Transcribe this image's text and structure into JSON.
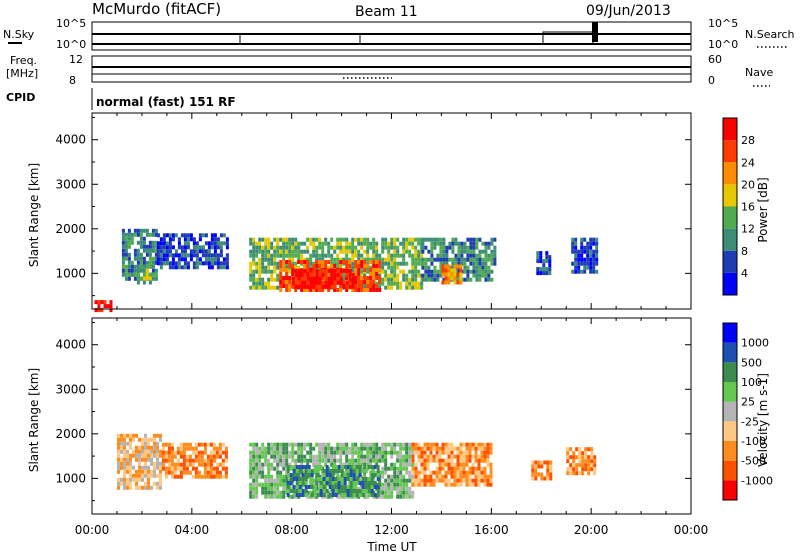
{
  "header": {
    "station": "McMurdo (fitACF)",
    "beam": "Beam 11",
    "date": "09/Jun/2013",
    "cpid_label": "CPID",
    "cpid_value": "normal (fast) 151 RF"
  },
  "noise_panel": {
    "left_label": "N.Sky",
    "right_label": "N.Search",
    "left_ticks": [
      "10^5",
      "10^0"
    ],
    "right_ticks": [
      "10^5",
      "10^0"
    ]
  },
  "freq_panel": {
    "left_label_1": "Freq.",
    "left_label_2": "[MHz]",
    "right_label": "Nave",
    "left_ticks": [
      "12",
      "8"
    ],
    "right_ticks": [
      "60",
      "0"
    ]
  },
  "chart_data": [
    {
      "type": "heatmap",
      "name": "power",
      "ylabel": "Slant Range [km]",
      "yticks": [
        1000,
        2000,
        3000,
        4000
      ],
      "ylim": [
        200,
        4600
      ],
      "xlim": [
        0,
        24
      ],
      "xunit": "hours UT",
      "colorbar_label": "Power [dB]",
      "colorbar_ticks": [
        "28",
        "24",
        "20",
        "16",
        "12",
        "8",
        "4"
      ],
      "colors": [
        "#0000ff",
        "#1e3cb4",
        "#3c8c78",
        "#50aa50",
        "#e6c800",
        "#ff8c00",
        "#ff3c00",
        "#ff0000"
      ],
      "echo_regions": [
        {
          "t0": 0.1,
          "t1": 0.8,
          "r0": 200,
          "r1": 400,
          "level": 7
        },
        {
          "t0": 1.2,
          "t1": 2.6,
          "r0": 900,
          "r1": 2000,
          "level": 2
        },
        {
          "t0": 1.8,
          "t1": 2.4,
          "r0": 800,
          "r1": 1200,
          "level": 3
        },
        {
          "t0": 2.6,
          "t1": 5.4,
          "r0": 1100,
          "r1": 1900,
          "level": 1
        },
        {
          "t0": 6.3,
          "t1": 13.2,
          "r0": 700,
          "r1": 1800,
          "level": 3
        },
        {
          "t0": 7.5,
          "t1": 11.5,
          "r0": 650,
          "r1": 1300,
          "level": 6
        },
        {
          "t0": 8.0,
          "t1": 10.5,
          "r0": 700,
          "r1": 1100,
          "level": 7
        },
        {
          "t0": 13.2,
          "t1": 16.2,
          "r0": 900,
          "r1": 1800,
          "level": 2
        },
        {
          "t0": 14.0,
          "t1": 14.8,
          "r0": 800,
          "r1": 1200,
          "level": 5
        },
        {
          "t0": 17.8,
          "t1": 18.4,
          "r0": 1000,
          "r1": 1500,
          "level": 1
        },
        {
          "t0": 19.2,
          "t1": 20.2,
          "r0": 1000,
          "r1": 1800,
          "level": 1
        }
      ]
    },
    {
      "type": "heatmap",
      "name": "velocity",
      "ylabel": "Slant Range [km]",
      "yticks": [
        1000,
        2000,
        3000,
        4000
      ],
      "ylim": [
        200,
        4600
      ],
      "xlim": [
        0,
        24
      ],
      "xunit": "hours UT",
      "xlabel": "Time UT",
      "xticks": [
        "00:00",
        "04:00",
        "08:00",
        "12:00",
        "16:00",
        "20:00",
        "00:00"
      ],
      "colorbar_label": "Velocity [m s-1]",
      "colorbar_ticks": [
        "1000",
        "500",
        "100",
        "25",
        "-25",
        "-100",
        "-500",
        "-1000"
      ],
      "colors": [
        "#ff0000",
        "#ff5000",
        "#ff8c1e",
        "#ffc882",
        "#b4b4b4",
        "#64c850",
        "#3c8c50",
        "#1e50b4",
        "#0000ff"
      ],
      "echo_regions": [
        {
          "t0": 1.0,
          "t1": 2.8,
          "r0": 800,
          "r1": 2000,
          "level": 3
        },
        {
          "t0": 2.8,
          "t1": 5.4,
          "r0": 1000,
          "r1": 1800,
          "level": 2
        },
        {
          "t0": 6.3,
          "t1": 12.8,
          "r0": 600,
          "r1": 1800,
          "level": 5
        },
        {
          "t0": 7.8,
          "t1": 11.5,
          "r0": 600,
          "r1": 1300,
          "level": 6
        },
        {
          "t0": 12.8,
          "t1": 16.0,
          "r0": 900,
          "r1": 1800,
          "level": 2
        },
        {
          "t0": 17.6,
          "t1": 18.4,
          "r0": 1000,
          "r1": 1400,
          "level": 2
        },
        {
          "t0": 19.0,
          "t1": 20.2,
          "r0": 1100,
          "r1": 1700,
          "level": 2
        }
      ]
    }
  ]
}
